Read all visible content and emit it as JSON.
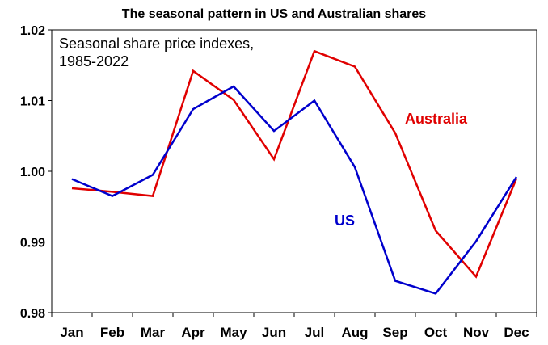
{
  "chart_data": {
    "type": "line",
    "title": "The seasonal pattern in US and Australian shares",
    "annotation_lines": [
      "Seasonal share price indexes,",
      "1985-2022"
    ],
    "categories": [
      "Jan",
      "Feb",
      "Mar",
      "Apr",
      "May",
      "Jun",
      "Jul",
      "Aug",
      "Sep",
      "Oct",
      "Nov",
      "Dec"
    ],
    "ylim": [
      0.98,
      1.02
    ],
    "yticks": [
      0.98,
      0.99,
      1.0,
      1.01,
      1.02
    ],
    "ytick_labels": [
      "0.98",
      "0.99",
      "1.00",
      "1.01",
      "1.02"
    ],
    "grid": false,
    "legend": "inline labels",
    "series": [
      {
        "name": "Australia",
        "color": "#e00000",
        "values": [
          0.9976,
          0.9971,
          0.9965,
          1.0142,
          1.0101,
          1.0017,
          1.017,
          1.0148,
          1.0054,
          0.9916,
          0.9851,
          0.999
        ]
      },
      {
        "name": "US",
        "color": "#0000cc",
        "values": [
          0.9989,
          0.9965,
          0.9995,
          1.0088,
          1.012,
          1.0057,
          1.01,
          1.0006,
          0.9845,
          0.9827,
          0.9901,
          0.9992
        ]
      }
    ]
  }
}
